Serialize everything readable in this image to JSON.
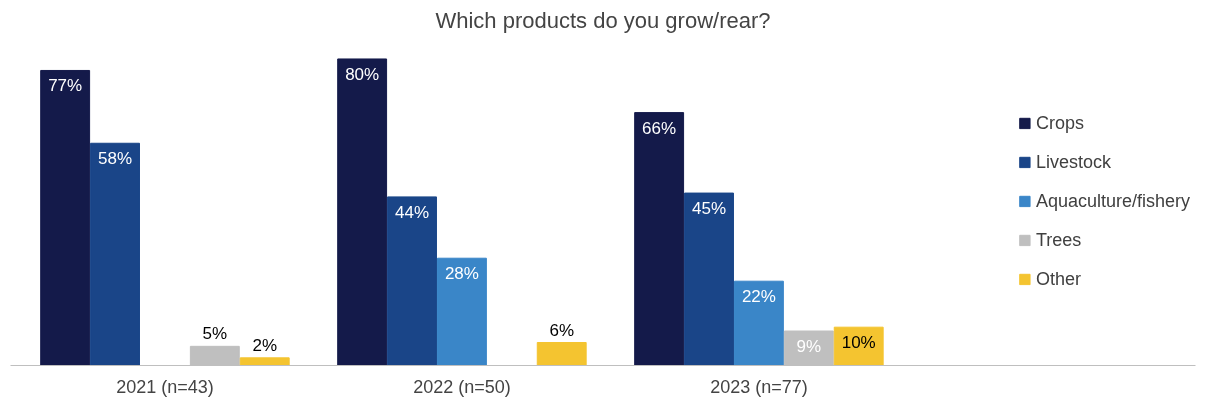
{
  "chart_data": {
    "type": "bar",
    "title": "Which products do you grow/rear?",
    "categories": [
      "2021 (n=43)",
      "2022 (n=50)",
      "2023 (n=77)"
    ],
    "series": [
      {
        "name": "Crops",
        "color": "#141a4a",
        "values": [
          77,
          80,
          66
        ],
        "value_labels": [
          "77%",
          "80%",
          "66%"
        ]
      },
      {
        "name": "Livestock",
        "color": "#1a4588",
        "values": [
          58,
          44,
          45
        ],
        "value_labels": [
          "58%",
          "44%",
          "45%"
        ]
      },
      {
        "name": "Aquaculture/fishery",
        "color": "#3a86c8",
        "values": [
          null,
          28,
          22
        ],
        "value_labels": [
          null,
          "28%",
          "22%"
        ]
      },
      {
        "name": "Trees",
        "color": "#bfbfbf",
        "values": [
          5,
          null,
          9
        ],
        "value_labels": [
          "5%",
          null,
          "9%"
        ]
      },
      {
        "name": "Other",
        "color": "#f4c430",
        "values": [
          2,
          6,
          10
        ],
        "value_labels": [
          "2%",
          "6%",
          "10%"
        ]
      }
    ],
    "legend": "right",
    "grid": false
  }
}
